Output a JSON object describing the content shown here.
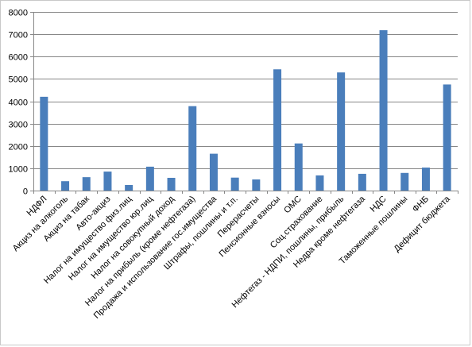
{
  "chart_data": {
    "type": "bar",
    "title": "",
    "xlabel": "",
    "ylabel": "",
    "ylim": [
      0,
      8000
    ],
    "yticks": [
      0,
      1000,
      2000,
      3000,
      4000,
      5000,
      6000,
      7000,
      8000
    ],
    "grid": true,
    "legend": "none",
    "bar_color": "#4a7ebb",
    "categories": [
      "НДФЛ",
      "Акциз на алкоголь",
      "Акциз на табак",
      "Авто-акциз",
      "Налог на имущество физ.лиц",
      "Налог на имущество юр.лиц",
      "Налог на совокупный доход",
      "Налог на прибыль (кроме нефтегаза)",
      "Продажа и использование гос.имущества",
      "Штрафы, пошлины и т.п.",
      "Перерасчеты",
      "Пенсионные взносы",
      "ОМС",
      "Соц.страхование",
      "Нефтегаз - НДПИ, пошлины, прибыль",
      "Недра кроме нефтегаза",
      "НДС",
      "Таможенные пошлины",
      "ФНБ",
      "Дефицит бюджета"
    ],
    "values": [
      4200,
      420,
      600,
      850,
      250,
      1070,
      570,
      3780,
      1650,
      580,
      500,
      5430,
      2110,
      680,
      5290,
      750,
      7180,
      790,
      1030,
      4750
    ]
  }
}
